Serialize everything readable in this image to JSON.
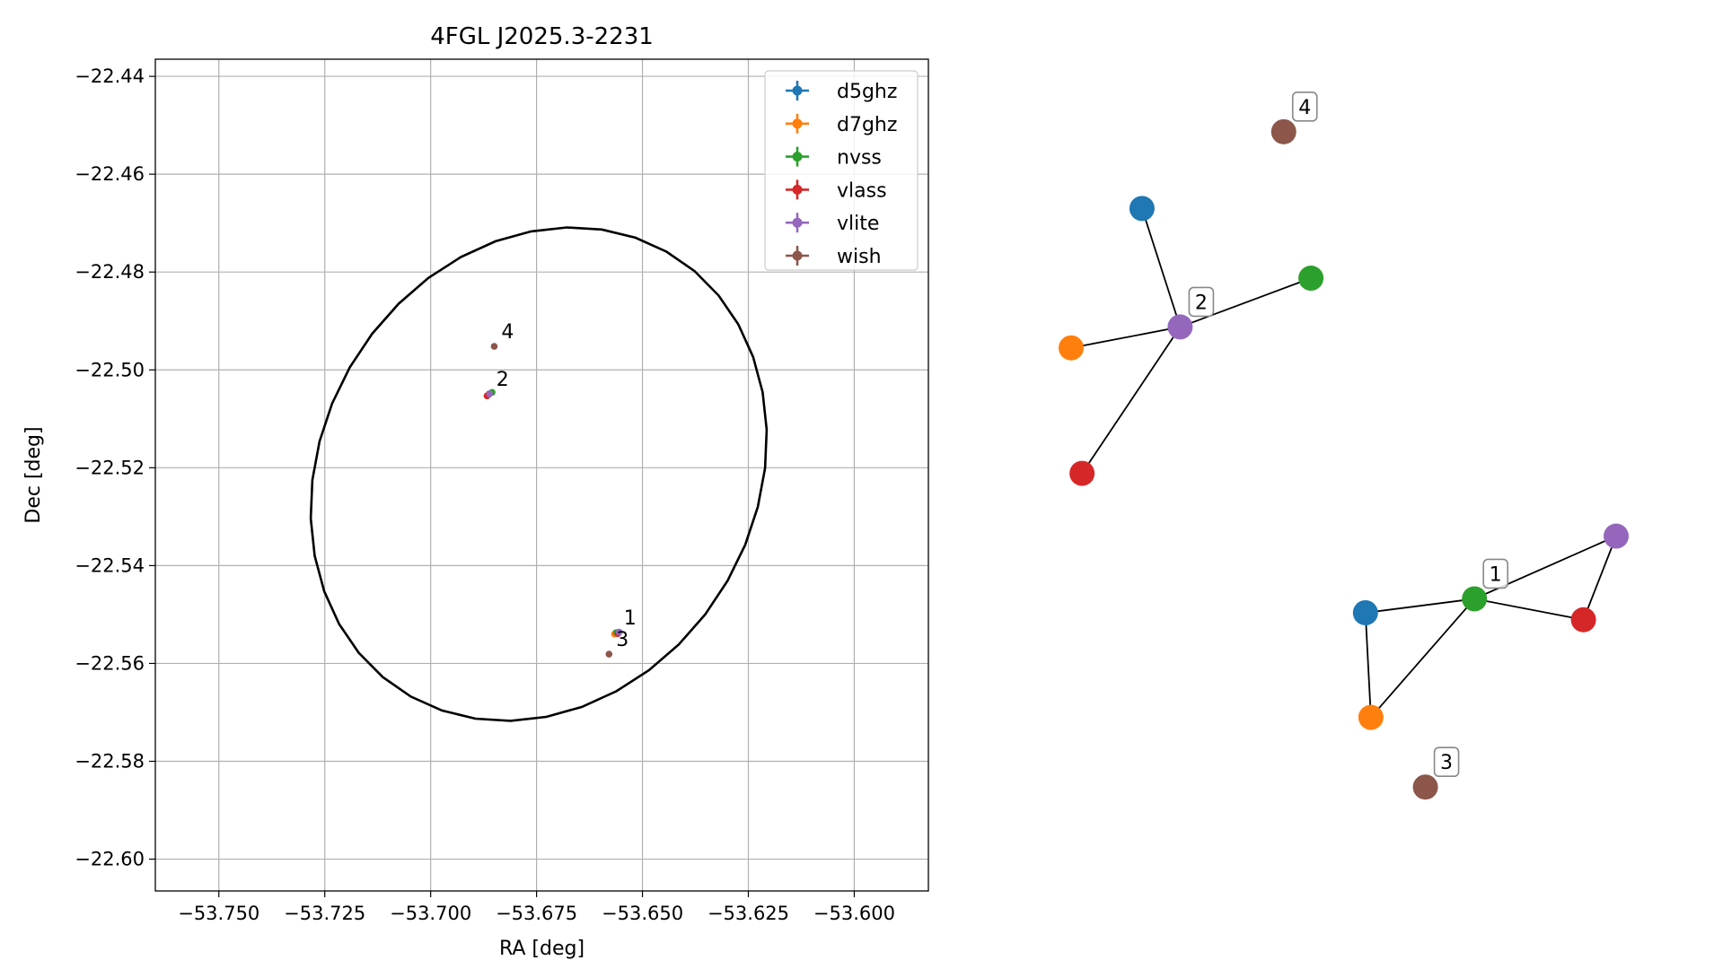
{
  "chart_data": [
    {
      "type": "scatter",
      "title": "4FGL J2025.3-2231",
      "xlabel": "RA [deg]",
      "ylabel": "Dec [deg]",
      "xlim": [
        -53.765,
        -53.5825
      ],
      "ylim": [
        -22.6065,
        -22.4365
      ],
      "grid": true,
      "legend_placement": "top-right",
      "x_ticks": [
        -53.75,
        -53.725,
        -53.7,
        -53.675,
        -53.65,
        -53.625,
        -53.6
      ],
      "x_tick_labels": [
        "−53.750",
        "−53.725",
        "−53.700",
        "−53.675",
        "−53.650",
        "−53.625",
        "−53.600"
      ],
      "y_ticks": [
        -22.44,
        -22.46,
        -22.48,
        -22.5,
        -22.52,
        -22.54,
        -22.56,
        -22.58,
        -22.6
      ],
      "y_tick_labels": [
        "−22.44",
        "−22.46",
        "−22.48",
        "−22.50",
        "−22.52",
        "−22.54",
        "−22.56",
        "−22.58",
        "−22.60"
      ],
      "ellipse": {
        "center": [
          -53.6745,
          -22.5213
        ],
        "semi_axis_a": 0.0562,
        "semi_axis_b": 0.0478,
        "angle_deg": 33,
        "color": "#000000"
      },
      "series": [
        {
          "name": "d5ghz",
          "color": "#1f77b4",
          "points": [
            {
              "x": -53.6564,
              "y": -22.5538
            },
            {
              "x": -53.6862,
              "y": -22.5049
            }
          ]
        },
        {
          "name": "d7ghz",
          "color": "#ff7f0e",
          "points": [
            {
              "x": -53.6566,
              "y": -22.554
            },
            {
              "x": -53.6864,
              "y": -22.5051
            }
          ]
        },
        {
          "name": "nvss",
          "color": "#2ca02c",
          "points": [
            {
              "x": -53.6561,
              "y": -22.5537
            },
            {
              "x": -53.6855,
              "y": -22.5046
            }
          ]
        },
        {
          "name": "vlass",
          "color": "#d62728",
          "points": [
            {
              "x": -53.6558,
              "y": -22.5539
            },
            {
              "x": -53.6867,
              "y": -22.5053
            }
          ]
        },
        {
          "name": "vlite",
          "color": "#9467bd",
          "points": [
            {
              "x": -53.6555,
              "y": -22.5536
            },
            {
              "x": -53.6861,
              "y": -22.5049
            }
          ]
        },
        {
          "name": "wish",
          "color": "#8c564b",
          "points": [
            {
              "x": -53.6579,
              "y": -22.5581
            },
            {
              "x": -53.685,
              "y": -22.4952
            }
          ]
        }
      ],
      "annotations": [
        {
          "text": "4",
          "x": -53.685,
          "y": -22.4952
        },
        {
          "text": "2",
          "x": -53.6862,
          "y": -22.5049
        },
        {
          "text": "1",
          "x": -53.6561,
          "y": -22.5537
        },
        {
          "text": "3",
          "x": -53.6579,
          "y": -22.5581
        }
      ]
    },
    {
      "type": "network",
      "title": "",
      "node_colors": {
        "d5ghz": "#1f77b4",
        "d7ghz": "#ff7f0e",
        "nvss": "#2ca02c",
        "vlass": "#d62728",
        "vlite": "#9467bd",
        "wish": "#8c564b"
      },
      "clusters": [
        {
          "label": "4",
          "hub": "wish",
          "nodes": [
            {
              "catalog": "wish",
              "x": 0.39,
              "y": 0.05
            }
          ],
          "edges": []
        },
        {
          "label": "2",
          "hub": "vlite",
          "nodes": [
            {
              "catalog": "vlite",
              "x": 0.2,
              "y": 0.33
            },
            {
              "catalog": "d5ghz",
              "x": 0.13,
              "y": 0.16
            },
            {
              "catalog": "nvss",
              "x": 0.44,
              "y": 0.26
            },
            {
              "catalog": "d7ghz",
              "x": 0.0,
              "y": 0.36
            },
            {
              "catalog": "vlass",
              "x": 0.02,
              "y": 0.54
            }
          ],
          "edges": [
            [
              "vlite",
              "d5ghz"
            ],
            [
              "vlite",
              "nvss"
            ],
            [
              "vlite",
              "d7ghz"
            ],
            [
              "vlite",
              "vlass"
            ]
          ]
        },
        {
          "label": "1",
          "hub": "nvss",
          "nodes": [
            {
              "catalog": "nvss",
              "x": 0.74,
              "y": 0.72
            },
            {
              "catalog": "d5ghz",
              "x": 0.54,
              "y": 0.74
            },
            {
              "catalog": "d7ghz",
              "x": 0.55,
              "y": 0.89
            },
            {
              "catalog": "vlass",
              "x": 0.94,
              "y": 0.75
            },
            {
              "catalog": "vlite",
              "x": 1.0,
              "y": 0.63
            }
          ],
          "edges": [
            [
              "nvss",
              "d5ghz"
            ],
            [
              "nvss",
              "d7ghz"
            ],
            [
              "nvss",
              "vlass"
            ],
            [
              "nvss",
              "vlite"
            ],
            [
              "d5ghz",
              "d7ghz"
            ],
            [
              "vlass",
              "vlite"
            ]
          ]
        },
        {
          "label": "3",
          "hub": "wish",
          "nodes": [
            {
              "catalog": "wish",
              "x": 0.65,
              "y": 0.99
            }
          ],
          "edges": []
        }
      ]
    }
  ]
}
